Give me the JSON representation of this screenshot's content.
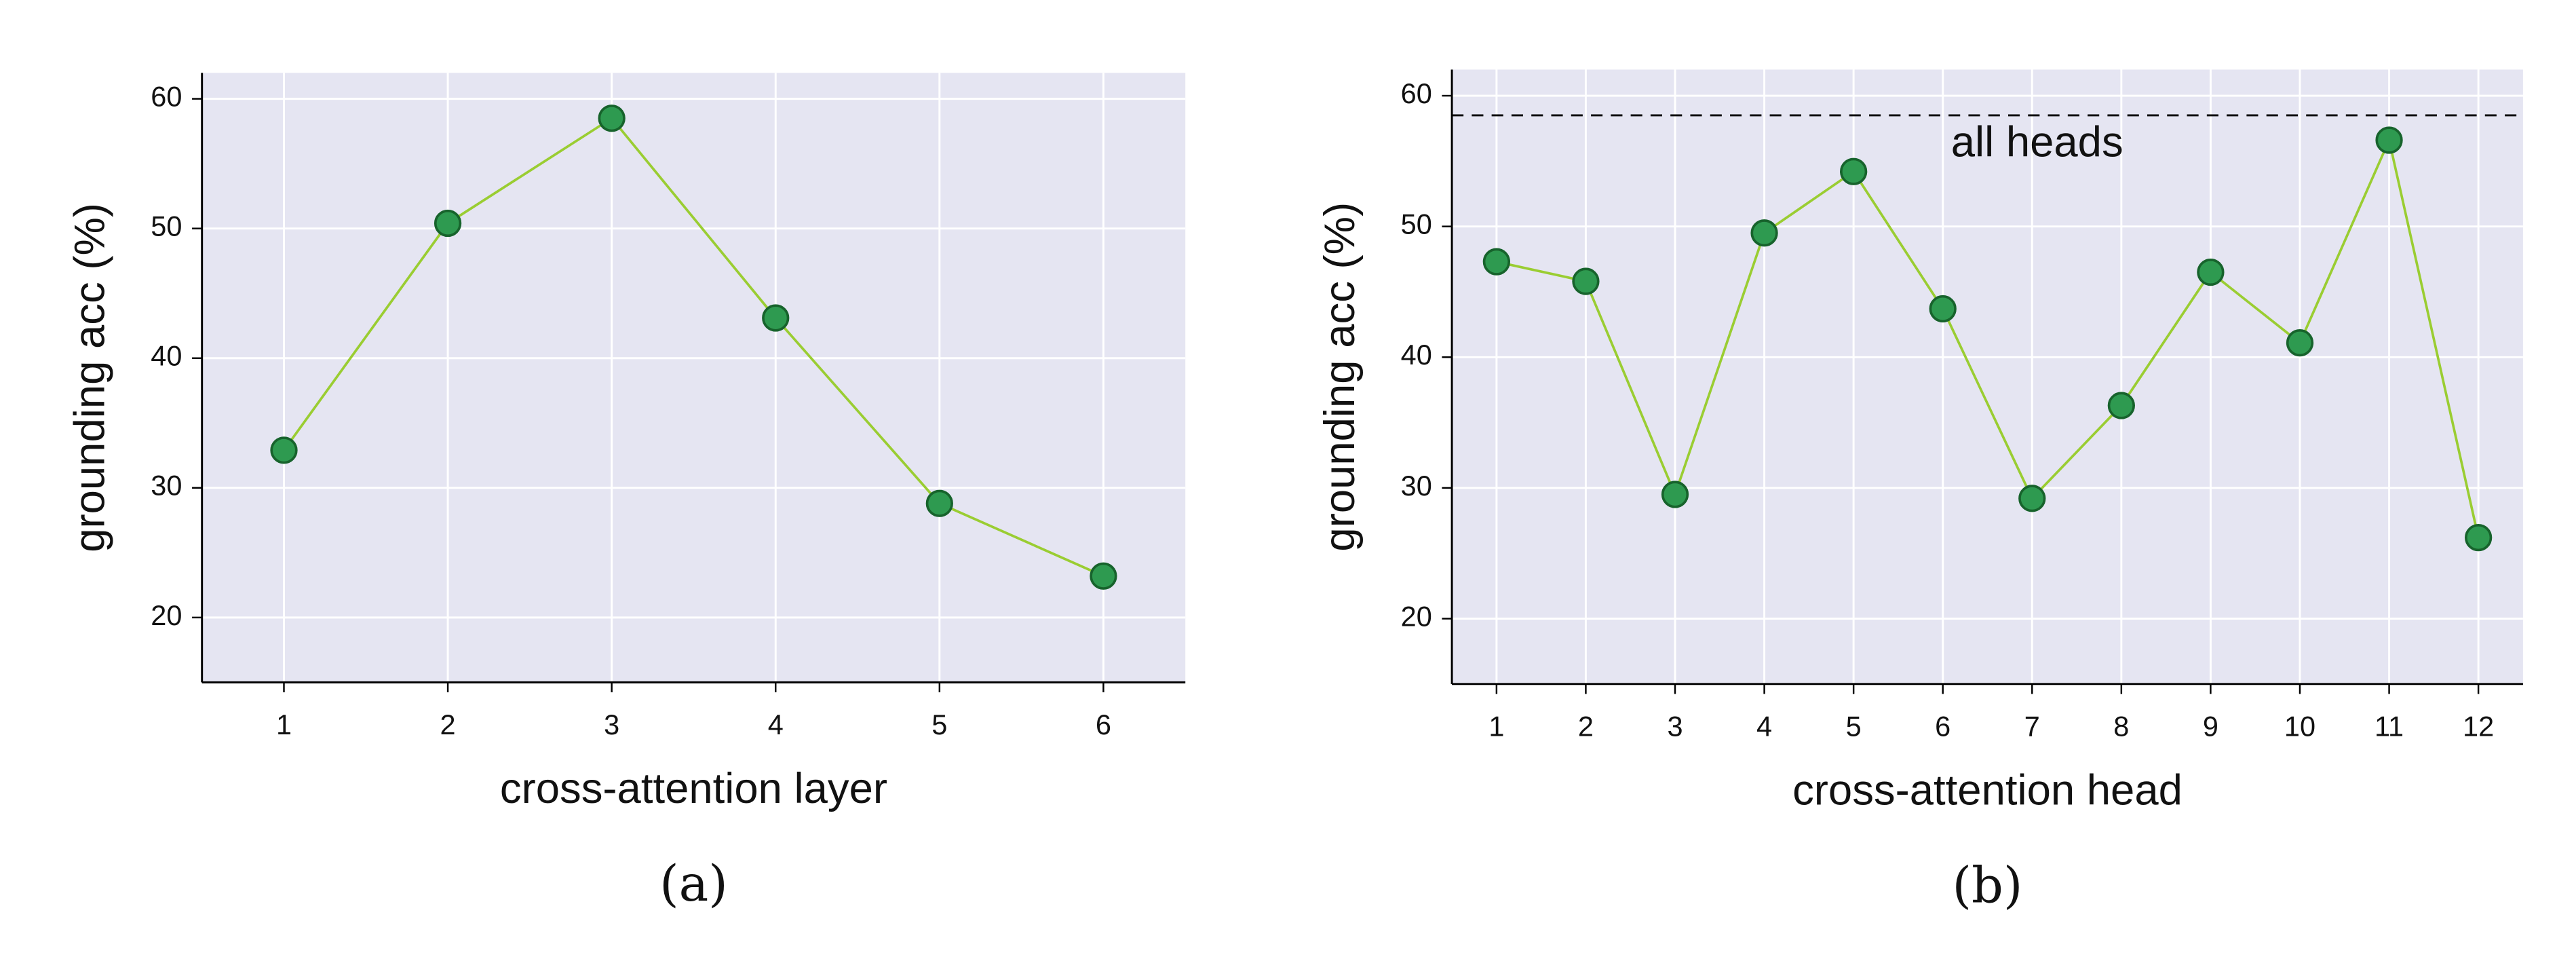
{
  "chart_data": [
    {
      "type": "line",
      "x": [
        1,
        2,
        3,
        4,
        5,
        6
      ],
      "values": [
        32.9,
        50.4,
        58.5,
        43.1,
        28.8,
        23.2
      ],
      "xlim": [
        0.5,
        6.5
      ],
      "xticks": [
        1,
        2,
        3,
        4,
        5,
        6
      ],
      "ylim": [
        15,
        62
      ],
      "yticks": [
        20,
        30,
        40,
        50,
        60
      ],
      "xlabel": "cross-attention layer",
      "ylabel": "grounding acc (%)",
      "caption": "(a)",
      "line_color": "#9acd32",
      "marker_color": "#2e9a50",
      "background": "#e5e5f2",
      "grid": true
    },
    {
      "type": "line",
      "x": [
        1,
        2,
        3,
        4,
        5,
        6,
        7,
        8,
        9,
        10,
        11,
        12
      ],
      "values": [
        47.3,
        45.8,
        29.5,
        49.5,
        54.2,
        43.7,
        29.2,
        36.3,
        46.5,
        41.1,
        56.6,
        26.2
      ],
      "xlim": [
        0.5,
        12.5
      ],
      "xticks": [
        1,
        2,
        3,
        4,
        5,
        6,
        7,
        8,
        9,
        10,
        11,
        12
      ],
      "ylim": [
        15,
        62
      ],
      "yticks": [
        20,
        30,
        40,
        50,
        60
      ],
      "xlabel": "cross-attention head",
      "ylabel": "grounding acc (%)",
      "caption": "(b)",
      "hline": {
        "value": 58.5,
        "label": "all heads"
      },
      "line_color": "#9acd32",
      "marker_color": "#2e9a50",
      "background": "#e5e5f2",
      "grid": true
    }
  ]
}
